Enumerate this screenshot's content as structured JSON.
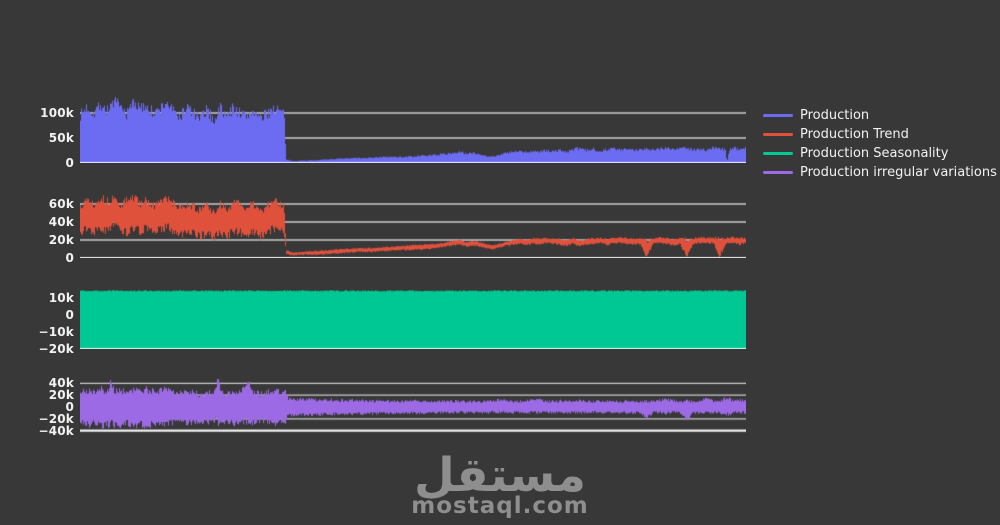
{
  "page": {
    "background": "#383838"
  },
  "style": {
    "grid_color": "#d4d4d4",
    "axis_line_color": "#ffffff",
    "tick_text_color": "#f2f2f2",
    "legend_text_color": "#f2f2f2"
  },
  "legend": {
    "position": "right"
  },
  "watermark": {
    "logo_text": "مستقل",
    "domain": "mostaql.com",
    "color": "#8e8e8e"
  },
  "chart_data": [
    {
      "type": "area",
      "name": "Production",
      "color": "#6c6cf2",
      "units": "thousands",
      "x_domain": [
        0,
        100
      ],
      "ylim": [
        0,
        132
      ],
      "yticks": [
        {
          "v": 0,
          "label": "0"
        },
        {
          "v": 50,
          "label": "50k"
        },
        {
          "v": 100,
          "label": "100k"
        }
      ],
      "baseline_tick": 0,
      "seed": 7,
      "jitter": {
        "top": 0.12,
        "bottom": 0
      },
      "envelope": [
        [
          0,
          0,
          96
        ],
        [
          1,
          0,
          112
        ],
        [
          2,
          0,
          100
        ],
        [
          3,
          0,
          118
        ],
        [
          4,
          0,
          104
        ],
        [
          5,
          0,
          124
        ],
        [
          6,
          0,
          110
        ],
        [
          7,
          0,
          98
        ],
        [
          8,
          0,
          126
        ],
        [
          9,
          0,
          106
        ],
        [
          10,
          0,
          118
        ],
        [
          11,
          0,
          96
        ],
        [
          12,
          0,
          108
        ],
        [
          13,
          0,
          122
        ],
        [
          14,
          0,
          102
        ],
        [
          15,
          0,
          93
        ],
        [
          16,
          0,
          112
        ],
        [
          17,
          0,
          99
        ],
        [
          18,
          0,
          88
        ],
        [
          19,
          0,
          107
        ],
        [
          20,
          0,
          84
        ],
        [
          21,
          0,
          110
        ],
        [
          22,
          0,
          92
        ],
        [
          23,
          0,
          112
        ],
        [
          24,
          0,
          99
        ],
        [
          25,
          0,
          93
        ],
        [
          26,
          0,
          106
        ],
        [
          27,
          0,
          87
        ],
        [
          28,
          0,
          99
        ],
        [
          29,
          0,
          110
        ],
        [
          30,
          0,
          104
        ],
        [
          30.6,
          0,
          96
        ],
        [
          30.9,
          0,
          6
        ],
        [
          32,
          0,
          4
        ],
        [
          34,
          0,
          5
        ],
        [
          36,
          0,
          6
        ],
        [
          38,
          0,
          8
        ],
        [
          40,
          0,
          9
        ],
        [
          42,
          0,
          10
        ],
        [
          44,
          0,
          11
        ],
        [
          46,
          0,
          12
        ],
        [
          48,
          0,
          12
        ],
        [
          50,
          0,
          13
        ],
        [
          52,
          0,
          15
        ],
        [
          54,
          0,
          17
        ],
        [
          56,
          0,
          20
        ],
        [
          57,
          0,
          22
        ],
        [
          58,
          0,
          18
        ],
        [
          59,
          0,
          21
        ],
        [
          60,
          0,
          17
        ],
        [
          61,
          0,
          14
        ],
        [
          62,
          0,
          13
        ],
        [
          63,
          0,
          17
        ],
        [
          64,
          0,
          20
        ],
        [
          65,
          0,
          22
        ],
        [
          66,
          0,
          23
        ],
        [
          67,
          0,
          21
        ],
        [
          68,
          0,
          24
        ],
        [
          69,
          0,
          22
        ],
        [
          70,
          0,
          25
        ],
        [
          71,
          0,
          23
        ],
        [
          72,
          0,
          26
        ],
        [
          73,
          0,
          22
        ],
        [
          74,
          0,
          27
        ],
        [
          75,
          0,
          29
        ],
        [
          76,
          0,
          25
        ],
        [
          77,
          0,
          28
        ],
        [
          78,
          0,
          24
        ],
        [
          79,
          0,
          27
        ],
        [
          80,
          0,
          29
        ],
        [
          81,
          0,
          26
        ],
        [
          82,
          0,
          28
        ],
        [
          83,
          0,
          25
        ],
        [
          84,
          0,
          27
        ],
        [
          85,
          0,
          30
        ],
        [
          86,
          0,
          26
        ],
        [
          87,
          0,
          29
        ],
        [
          88,
          0,
          31
        ],
        [
          89,
          0,
          27
        ],
        [
          90,
          0,
          29
        ],
        [
          91,
          0,
          31
        ],
        [
          92,
          0,
          26
        ],
        [
          93,
          0,
          29
        ],
        [
          94,
          0,
          25
        ],
        [
          95,
          0,
          31
        ],
        [
          96,
          0,
          28
        ],
        [
          96.8,
          0,
          27
        ],
        [
          97.1,
          0,
          3
        ],
        [
          97.4,
          0,
          26
        ],
        [
          98,
          0,
          31
        ],
        [
          99,
          0,
          28
        ],
        [
          100,
          0,
          30
        ]
      ]
    },
    {
      "type": "band",
      "name": "Production Trend",
      "color": "#e0513c",
      "units": "thousands",
      "x_domain": [
        0,
        100
      ],
      "ylim": [
        0,
        70
      ],
      "yticks": [
        {
          "v": 0,
          "label": "0"
        },
        {
          "v": 20,
          "label": "20k"
        },
        {
          "v": 40,
          "label": "40k"
        },
        {
          "v": 60,
          "label": "60k"
        }
      ],
      "baseline_tick": 0,
      "seed": 13,
      "jitter": {
        "top": 0.16,
        "bottom": 0.16
      },
      "envelope": [
        [
          0,
          30,
          58
        ],
        [
          1,
          33,
          66
        ],
        [
          2,
          29,
          60
        ],
        [
          3,
          34,
          68
        ],
        [
          4,
          30,
          62
        ],
        [
          5,
          36,
          67
        ],
        [
          6,
          32,
          58
        ],
        [
          7,
          28,
          64
        ],
        [
          8,
          34,
          68
        ],
        [
          9,
          30,
          60
        ],
        [
          10,
          33,
          64
        ],
        [
          11,
          28,
          57
        ],
        [
          12,
          32,
          63
        ],
        [
          13,
          35,
          66
        ],
        [
          14,
          30,
          60
        ],
        [
          15,
          26,
          55
        ],
        [
          16,
          30,
          61
        ],
        [
          17,
          27,
          57
        ],
        [
          18,
          24,
          52
        ],
        [
          19,
          28,
          59
        ],
        [
          20,
          23,
          50
        ],
        [
          21,
          28,
          59
        ],
        [
          22,
          25,
          54
        ],
        [
          23,
          30,
          63
        ],
        [
          24,
          28,
          58
        ],
        [
          25,
          26,
          55
        ],
        [
          26,
          30,
          61
        ],
        [
          27,
          24,
          52
        ],
        [
          28,
          28,
          58
        ],
        [
          29,
          33,
          63
        ],
        [
          30,
          30,
          60
        ],
        [
          30.6,
          28,
          56
        ],
        [
          30.9,
          4,
          9
        ],
        [
          32,
          3,
          6
        ],
        [
          34,
          4,
          7
        ],
        [
          36,
          4,
          8
        ],
        [
          38,
          5,
          9
        ],
        [
          40,
          6,
          10
        ],
        [
          42,
          7,
          11
        ],
        [
          44,
          7,
          11
        ],
        [
          46,
          8,
          12
        ],
        [
          48,
          9,
          13
        ],
        [
          50,
          9,
          14
        ],
        [
          52,
          10,
          15
        ],
        [
          54,
          12,
          16
        ],
        [
          56,
          14,
          19
        ],
        [
          57,
          15,
          20
        ],
        [
          58,
          13,
          17
        ],
        [
          59,
          14,
          19
        ],
        [
          60,
          13,
          17
        ],
        [
          61,
          11,
          15
        ],
        [
          62,
          10,
          14
        ],
        [
          63,
          12,
          16
        ],
        [
          64,
          14,
          18
        ],
        [
          65,
          15,
          20
        ],
        [
          66,
          16,
          21
        ],
        [
          67,
          15,
          20
        ],
        [
          68,
          16,
          22
        ],
        [
          69,
          15,
          21
        ],
        [
          70,
          17,
          22
        ],
        [
          71,
          16,
          21
        ],
        [
          72,
          15,
          21
        ],
        [
          73,
          14,
          20
        ],
        [
          74,
          16,
          22
        ],
        [
          75,
          13,
          19
        ],
        [
          76,
          15,
          21
        ],
        [
          77,
          16,
          22
        ],
        [
          78,
          17,
          22
        ],
        [
          79,
          15,
          21
        ],
        [
          80,
          16,
          22
        ],
        [
          81,
          17,
          23
        ],
        [
          82,
          16,
          22
        ],
        [
          83,
          15,
          21
        ],
        [
          84,
          16,
          22
        ],
        [
          85,
          2,
          19
        ],
        [
          86,
          16,
          22
        ],
        [
          87,
          17,
          23
        ],
        [
          88,
          16,
          22
        ],
        [
          89,
          14,
          21
        ],
        [
          90,
          16,
          22
        ],
        [
          91,
          1,
          20
        ],
        [
          92,
          16,
          22
        ],
        [
          93,
          17,
          23
        ],
        [
          94,
          16,
          22
        ],
        [
          95,
          17,
          23
        ],
        [
          96,
          3,
          21
        ],
        [
          97,
          16,
          22
        ],
        [
          98,
          17,
          23
        ],
        [
          99,
          15,
          22
        ],
        [
          100,
          17,
          22
        ]
      ]
    },
    {
      "type": "band",
      "name": "Production Seasonality",
      "color": "#00c894",
      "units": "thousands",
      "x_domain": [
        0,
        100
      ],
      "ylim": [
        -20,
        15
      ],
      "yticks": [
        {
          "v": -20,
          "label": "−20k"
        },
        {
          "v": -10,
          "label": "−10k"
        },
        {
          "v": 0,
          "label": "0"
        },
        {
          "v": 10,
          "label": "10k"
        }
      ],
      "baseline_tick": -20,
      "seed": 1,
      "jitter": {
        "top": 0.01,
        "bottom": 0
      },
      "envelope": [
        [
          0,
          -20,
          14.5
        ],
        [
          100,
          -20,
          14.5
        ]
      ]
    },
    {
      "type": "band",
      "name": "Production irregular variations",
      "color": "#9c6ae4",
      "units": "thousands",
      "x_domain": [
        0,
        100
      ],
      "ylim": [
        -49,
        49
      ],
      "yticks": [
        {
          "v": -40,
          "label": "−40k"
        },
        {
          "v": -20,
          "label": "−20k"
        },
        {
          "v": 0,
          "label": "0"
        },
        {
          "v": 20,
          "label": "20k"
        },
        {
          "v": 40,
          "label": "40k"
        }
      ],
      "baseline_tick": -40,
      "seed": 21,
      "jitter": {
        "top": 0.12,
        "bottom": 0.12
      },
      "envelope": [
        [
          0,
          -26,
          25
        ],
        [
          1,
          -30,
          28
        ],
        [
          2,
          -27,
          25
        ],
        [
          3,
          -32,
          30
        ],
        [
          4,
          -28,
          26
        ],
        [
          4.6,
          -30,
          47
        ],
        [
          5,
          -29,
          27
        ],
        [
          6,
          -31,
          28
        ],
        [
          7,
          -26,
          24
        ],
        [
          8,
          -30,
          28
        ],
        [
          9,
          -28,
          26
        ],
        [
          10,
          -32,
          29
        ],
        [
          11,
          -27,
          25
        ],
        [
          12,
          -30,
          28
        ],
        [
          13,
          -28,
          30
        ],
        [
          14,
          -26,
          25
        ],
        [
          15,
          -24,
          23
        ],
        [
          16,
          -27,
          26
        ],
        [
          17,
          -25,
          24
        ],
        [
          18,
          -23,
          22
        ],
        [
          19,
          -26,
          25
        ],
        [
          20,
          -22,
          21
        ],
        [
          20.8,
          -25,
          47
        ],
        [
          21,
          -26,
          25
        ],
        [
          22,
          -24,
          23
        ],
        [
          23,
          -27,
          26
        ],
        [
          24,
          -25,
          24
        ],
        [
          25,
          -23,
          45
        ],
        [
          26,
          -26,
          25
        ],
        [
          27,
          -22,
          22
        ],
        [
          28,
          -25,
          24
        ],
        [
          29,
          -27,
          26
        ],
        [
          30,
          -25,
          25
        ],
        [
          30.8,
          -25,
          24
        ],
        [
          31.2,
          -14,
          14
        ],
        [
          33,
          -13,
          13
        ],
        [
          35,
          -13,
          12
        ],
        [
          37,
          -12,
          12
        ],
        [
          39,
          -12,
          11
        ],
        [
          41,
          -11,
          11
        ],
        [
          44,
          -11,
          10
        ],
        [
          47,
          -10,
          10
        ],
        [
          50,
          -10,
          10
        ],
        [
          53,
          -10,
          9
        ],
        [
          55,
          -9,
          10
        ],
        [
          58,
          -9,
          9
        ],
        [
          60,
          -10,
          9
        ],
        [
          62,
          -9,
          10
        ],
        [
          63,
          -9,
          12
        ],
        [
          65,
          -9,
          9
        ],
        [
          67,
          -10,
          10
        ],
        [
          68,
          -9,
          14
        ],
        [
          70,
          -9,
          9
        ],
        [
          72,
          -10,
          10
        ],
        [
          74,
          -9,
          9
        ],
        [
          75,
          -10,
          11
        ],
        [
          77,
          -9,
          9
        ],
        [
          78,
          -10,
          10
        ],
        [
          80,
          -9,
          9
        ],
        [
          82,
          -10,
          10
        ],
        [
          84,
          -9,
          9
        ],
        [
          85,
          -20,
          10
        ],
        [
          86,
          -9,
          9
        ],
        [
          88,
          -10,
          13
        ],
        [
          90,
          -9,
          9
        ],
        [
          91,
          -23,
          10
        ],
        [
          92,
          -9,
          10
        ],
        [
          93,
          -10,
          9
        ],
        [
          94,
          -9,
          15
        ],
        [
          95,
          -10,
          10
        ],
        [
          96,
          -9,
          9
        ],
        [
          97,
          -13,
          16
        ],
        [
          98,
          -10,
          10
        ],
        [
          99,
          -9,
          12
        ],
        [
          100,
          -10,
          10
        ]
      ]
    }
  ]
}
